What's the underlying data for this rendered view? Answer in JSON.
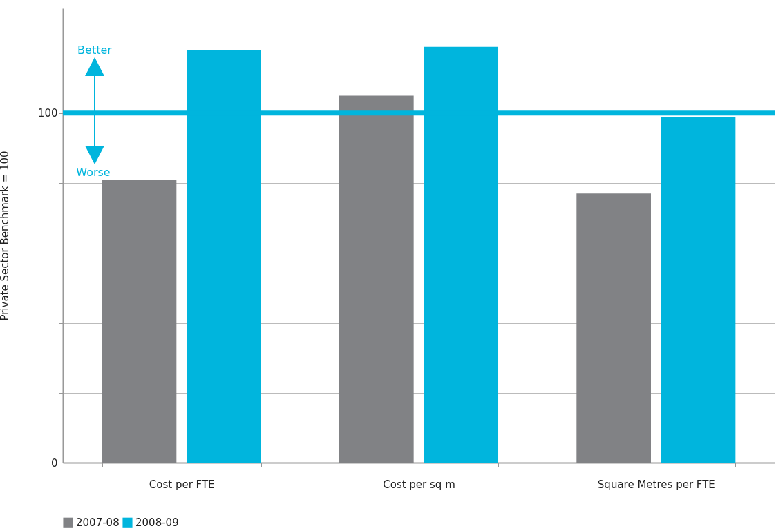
{
  "chart_data": {
    "type": "bar",
    "ylabel": "Private Sector Benchmark = 100",
    "categories": [
      "Cost per FTE",
      "Cost per sq m",
      "Square Metres per FTE"
    ],
    "series": [
      {
        "name": "2007-08",
        "color": "#818285",
        "values": [
          81,
          105,
          77
        ]
      },
      {
        "name": "2008-09",
        "color": "#00b5dd",
        "values": [
          118,
          119,
          99
        ]
      }
    ],
    "ylim": [
      0,
      130
    ],
    "yticks": [
      0,
      {
        "value": 20,
        "label": null
      },
      {
        "value": 40,
        "label": null
      },
      {
        "value": 60,
        "label": null
      },
      {
        "value": 80,
        "label": null
      },
      100,
      {
        "value": 120,
        "label": null
      }
    ],
    "ref_lines": [
      {
        "axis": "y",
        "value": 100,
        "color": "#00b5dd"
      }
    ],
    "annotations": [
      "Better",
      "Worse"
    ],
    "grid": "y",
    "legend": "bottom"
  }
}
